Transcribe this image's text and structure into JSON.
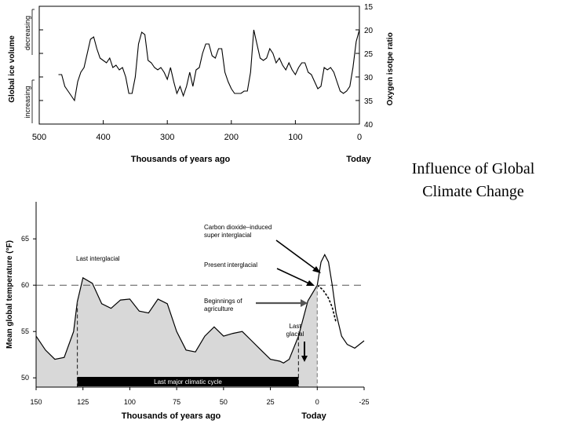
{
  "caption": {
    "line1": "Influence of Global",
    "line2": "Climate Change"
  },
  "chart_data": [
    {
      "type": "line",
      "title": "",
      "xlabel": "Thousands of  years ago",
      "xlabel_end": "Today",
      "ylabel_left": "Global ice volume",
      "ylabel_left_up": "decreasing",
      "ylabel_left_down": "increasing",
      "ylabel_right": "Oxygen isotpe ratio",
      "xlim": [
        500,
        0
      ],
      "ylim": [
        15,
        40
      ],
      "y_inverted": true,
      "x_ticks": [
        "500",
        "400",
        "300",
        "200",
        "100",
        "0"
      ],
      "x_tick_values": [
        500,
        400,
        300,
        200,
        100,
        0
      ],
      "y_ticks": [
        "15",
        "20",
        "25",
        "30",
        "35",
        "40"
      ],
      "y_tick_values": [
        15,
        20,
        25,
        30,
        35,
        40
      ],
      "x": [
        470,
        465,
        460,
        455,
        450,
        445,
        440,
        435,
        430,
        425,
        420,
        415,
        410,
        405,
        400,
        395,
        390,
        385,
        380,
        375,
        370,
        365,
        360,
        355,
        350,
        345,
        340,
        335,
        330,
        325,
        320,
        315,
        310,
        305,
        300,
        295,
        290,
        285,
        280,
        275,
        270,
        265,
        260,
        255,
        250,
        245,
        240,
        235,
        230,
        225,
        220,
        215,
        210,
        205,
        200,
        195,
        190,
        185,
        180,
        175,
        170,
        165,
        160,
        155,
        150,
        145,
        140,
        135,
        130,
        125,
        120,
        115,
        110,
        105,
        100,
        95,
        90,
        85,
        80,
        75,
        70,
        65,
        60,
        55,
        50,
        45,
        40,
        35,
        30,
        25,
        20,
        15,
        10,
        5,
        0
      ],
      "values": [
        29.5,
        29.5,
        32,
        33,
        34,
        35,
        31,
        29,
        28,
        25,
        22,
        21.5,
        24,
        26,
        26.5,
        27,
        26,
        28,
        27.5,
        28.5,
        28,
        30,
        33.5,
        33.5,
        30,
        23,
        20.5,
        21,
        26.5,
        27,
        28,
        28.5,
        28,
        29,
        30.5,
        28,
        31,
        33.5,
        32,
        34,
        32,
        29,
        32,
        28.5,
        28,
        25,
        23,
        23,
        25.5,
        26,
        24,
        24,
        29,
        31,
        32.5,
        33.5,
        33.5,
        33.5,
        33,
        33,
        29,
        20,
        23,
        26,
        26.5,
        26,
        24,
        25,
        27,
        26,
        27.5,
        28.5,
        27,
        28.5,
        29.5,
        28,
        27,
        27,
        29,
        29.5,
        31,
        32.5,
        32,
        28,
        28.5,
        28,
        29,
        31,
        33,
        33.5,
        33,
        32,
        28,
        22.5,
        20
      ]
    },
    {
      "type": "area",
      "title": "",
      "xlabel": "Thousands of  years ago",
      "xlabel_end": "Today",
      "ylabel": "Mean global temperature (°F)",
      "xlim": [
        150,
        -25
      ],
      "ylim": [
        49,
        69
      ],
      "x_ticks": [
        "150",
        "125",
        "100",
        "75",
        "50",
        "25",
        "0",
        "-25"
      ],
      "x_tick_values": [
        150,
        125,
        100,
        75,
        50,
        25,
        0,
        -25
      ],
      "y_ticks": [
        "50",
        "55",
        "60",
        "65"
      ],
      "y_tick_values": [
        50,
        55,
        60,
        65
      ],
      "reference_line": 60,
      "x": [
        150,
        145,
        140,
        135,
        130,
        128,
        125,
        120,
        115,
        110,
        105,
        100,
        95,
        90,
        85,
        80,
        75,
        70,
        65,
        60,
        55,
        50,
        45,
        40,
        35,
        30,
        25,
        20,
        18,
        15,
        10,
        5,
        0
      ],
      "values": [
        54.5,
        53,
        52,
        52.2,
        55,
        58.2,
        60.8,
        60.2,
        58,
        57.5,
        58.4,
        58.5,
        57.2,
        57,
        58.5,
        58,
        55,
        53,
        52.8,
        54.5,
        55.5,
        54.5,
        54.8,
        55,
        54,
        53,
        52,
        51.8,
        51.6,
        52,
        54.5,
        58.3,
        60
      ],
      "projection_high": {
        "label": "Carbon dioxide–induced super interglacial",
        "x": [
          0,
          -2,
          -4,
          -6,
          -8,
          -10,
          -13,
          -16,
          -20,
          -25
        ],
        "values": [
          60,
          62.5,
          63.3,
          62.5,
          60,
          57,
          54.5,
          53.6,
          53.2,
          54
        ]
      },
      "projection_low": {
        "label": "Present interglacial",
        "x": [
          0,
          -3,
          -6,
          -8,
          -10
        ],
        "values": [
          60,
          59.5,
          58.6,
          57.6,
          56
        ]
      },
      "annotations": {
        "last_interglacial": "Last interglacial",
        "super_line1": "Carbon dioxide–induced",
        "super_line2": "super interglacial",
        "present": "Present interglacial",
        "agri_line1": "Beginnings of",
        "agri_line2": "agriculture",
        "last_glacial_line1": "Last",
        "last_glacial_line2": "glacial",
        "cycle": "Last major climatic cycle"
      }
    }
  ]
}
